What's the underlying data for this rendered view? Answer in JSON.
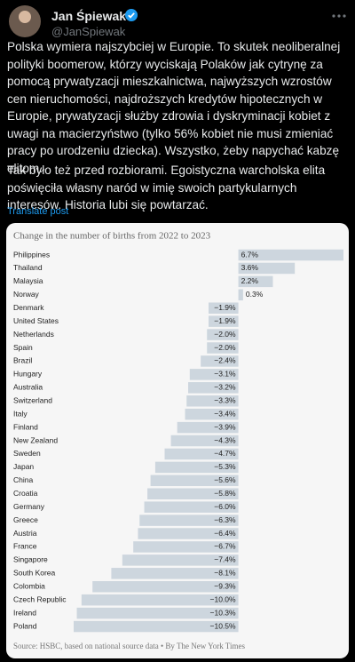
{
  "tweet": {
    "name": "Jan Śpiewak",
    "handle": "@JanSpiewak",
    "paragraphs": [
      "Polska wymiera najszybciej w Europie. To skutek neoliberalnej polityki boomerow, którzy wyciskają Polaków jak cytrynę za pomocą prywatyzacji mieszkalnictwa, najwyższych wzrostów cen nieruchomości, najdroższych kredytów hipotecznych w Europie, prywatyzacji służby zdrowia i dyskryminacji kobiet z uwagi na macierzyństwo (tylko 56% kobiet nie musi zmieniać pracy po urodzeniu dziecka). Wszystko, żeby napychać kabzę elitom.",
      "Tak było też przed rozbiorami. Egoistyczna warcholska elita poświęciła własny naród w imię swoich partykularnych interesów. Historia lubi się powtarzać."
    ],
    "translate": "Translate post"
  },
  "chart_data": {
    "type": "bar",
    "orientation": "horizontal",
    "title": "Change in the number of births from 2022 to 2023",
    "categories": [
      "Philippines",
      "Thailand",
      "Malaysia",
      "Norway",
      "Denmark",
      "United States",
      "Netherlands",
      "Spain",
      "Brazil",
      "Hungary",
      "Australia",
      "Switzerland",
      "Italy",
      "Finland",
      "New Zealand",
      "Sweden",
      "Japan",
      "China",
      "Croatia",
      "Germany",
      "Greece",
      "Austria",
      "France",
      "Singapore",
      "South Korea",
      "Colombia",
      "Czech Republic",
      "Ireland",
      "Poland"
    ],
    "values": [
      6.7,
      3.6,
      2.2,
      0.3,
      -1.9,
      -1.9,
      -2.0,
      -2.0,
      -2.4,
      -3.1,
      -3.2,
      -3.3,
      -3.4,
      -3.9,
      -4.3,
      -4.7,
      -5.3,
      -5.6,
      -5.8,
      -6.0,
      -6.3,
      -6.4,
      -6.7,
      -7.4,
      -8.1,
      -9.3,
      -10.0,
      -10.3,
      -10.5
    ],
    "value_labels": [
      "6.7%",
      "3.6%",
      "2.2%",
      "0.3%",
      "−1.9%",
      "−1.9%",
      "−2.0%",
      "−2.0%",
      "−2.4%",
      "−3.1%",
      "−3.2%",
      "−3.3%",
      "−3.4%",
      "−3.9%",
      "−4.3%",
      "−4.7%",
      "−5.3%",
      "−5.6%",
      "−5.8%",
      "−6.0%",
      "−6.3%",
      "−6.4%",
      "−6.7%",
      "−7.4%",
      "−8.1%",
      "−9.3%",
      "−10.0%",
      "−10.3%",
      "−10.5%"
    ],
    "color": "#cdd6de",
    "source": "Source: HSBC, based on national source data • By The New York Times"
  }
}
